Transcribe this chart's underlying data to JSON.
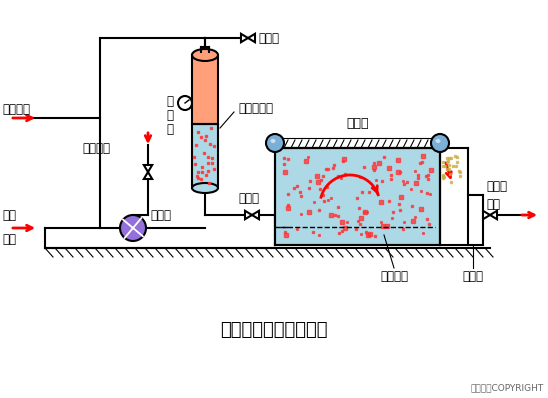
{
  "title": "部分溶气气浮工艺流程",
  "copyright": "东方仿真COPYRIGHT",
  "bg_color": "#ffffff",
  "line_color": "#000000",
  "tank_fill": "#add8e6",
  "vessel_fill_orange": "#ffa07a",
  "vessel_fill_blue": "#add8e6",
  "pump_fill": "#9370db",
  "bubble_color": "#ff4444",
  "roller_color": "#7ab0d8",
  "labels": {
    "air_in": "空气进入",
    "pressure_gauge": "压\n力\n表",
    "pressure_vessel": "压力溶气罐",
    "chemical": "化学药剂",
    "raw_water": "原水",
    "inlet": "进入",
    "pressure_pump": "加压泵",
    "pressure_reduce_valve": "减压阀",
    "exhaust_valve": "放气阀",
    "scraper": "刮渣机",
    "float_tank_side": "气浮池",
    "float_tank_bottom": "气浮池",
    "collect_system": "集水系统",
    "outlet": "出水"
  }
}
